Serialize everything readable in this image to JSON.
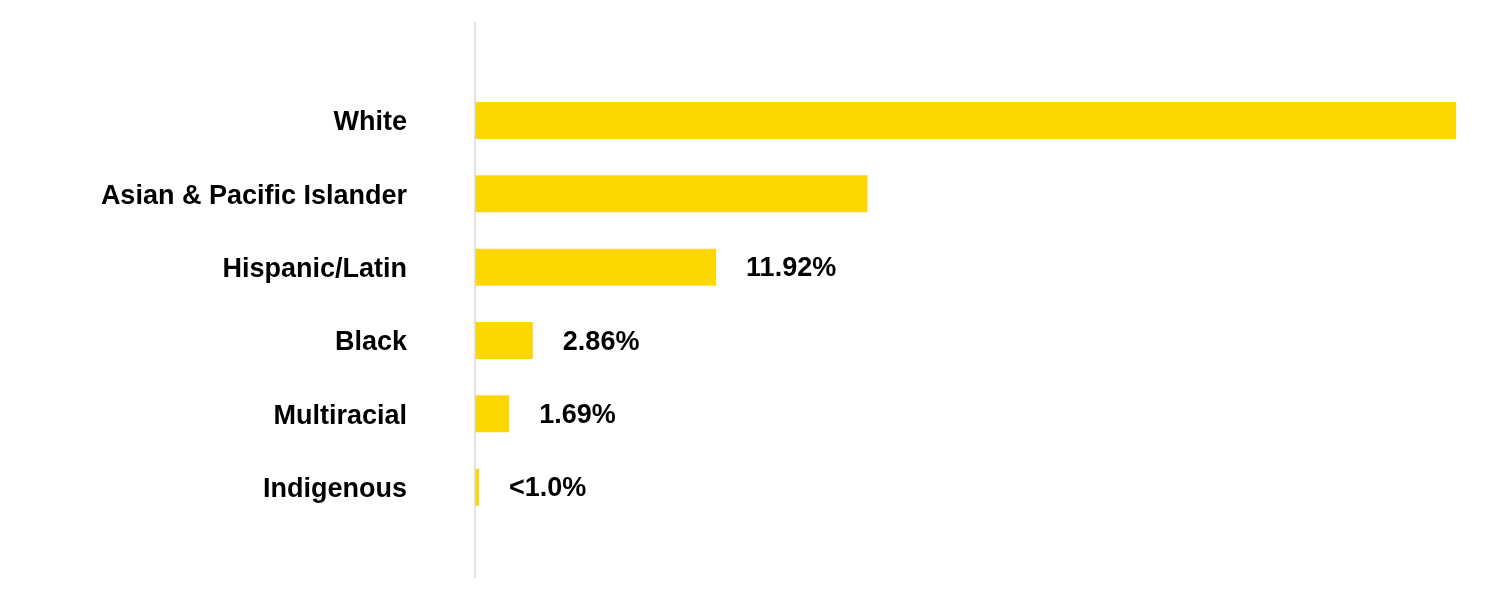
{
  "chart_data": {
    "type": "bar",
    "orientation": "horizontal",
    "categories": [
      "White",
      "Asian & Pacific Islander",
      "Hispanic/Latin",
      "Black",
      "Multiracial",
      "Indigenous"
    ],
    "values": [
      48.5,
      19.4,
      11.92,
      2.86,
      1.69,
      0.2
    ],
    "value_labels": [
      null,
      null,
      "11.92%",
      "2.86%",
      "1.69%",
      "<1.0%"
    ],
    "color": "#ffd700"
  }
}
